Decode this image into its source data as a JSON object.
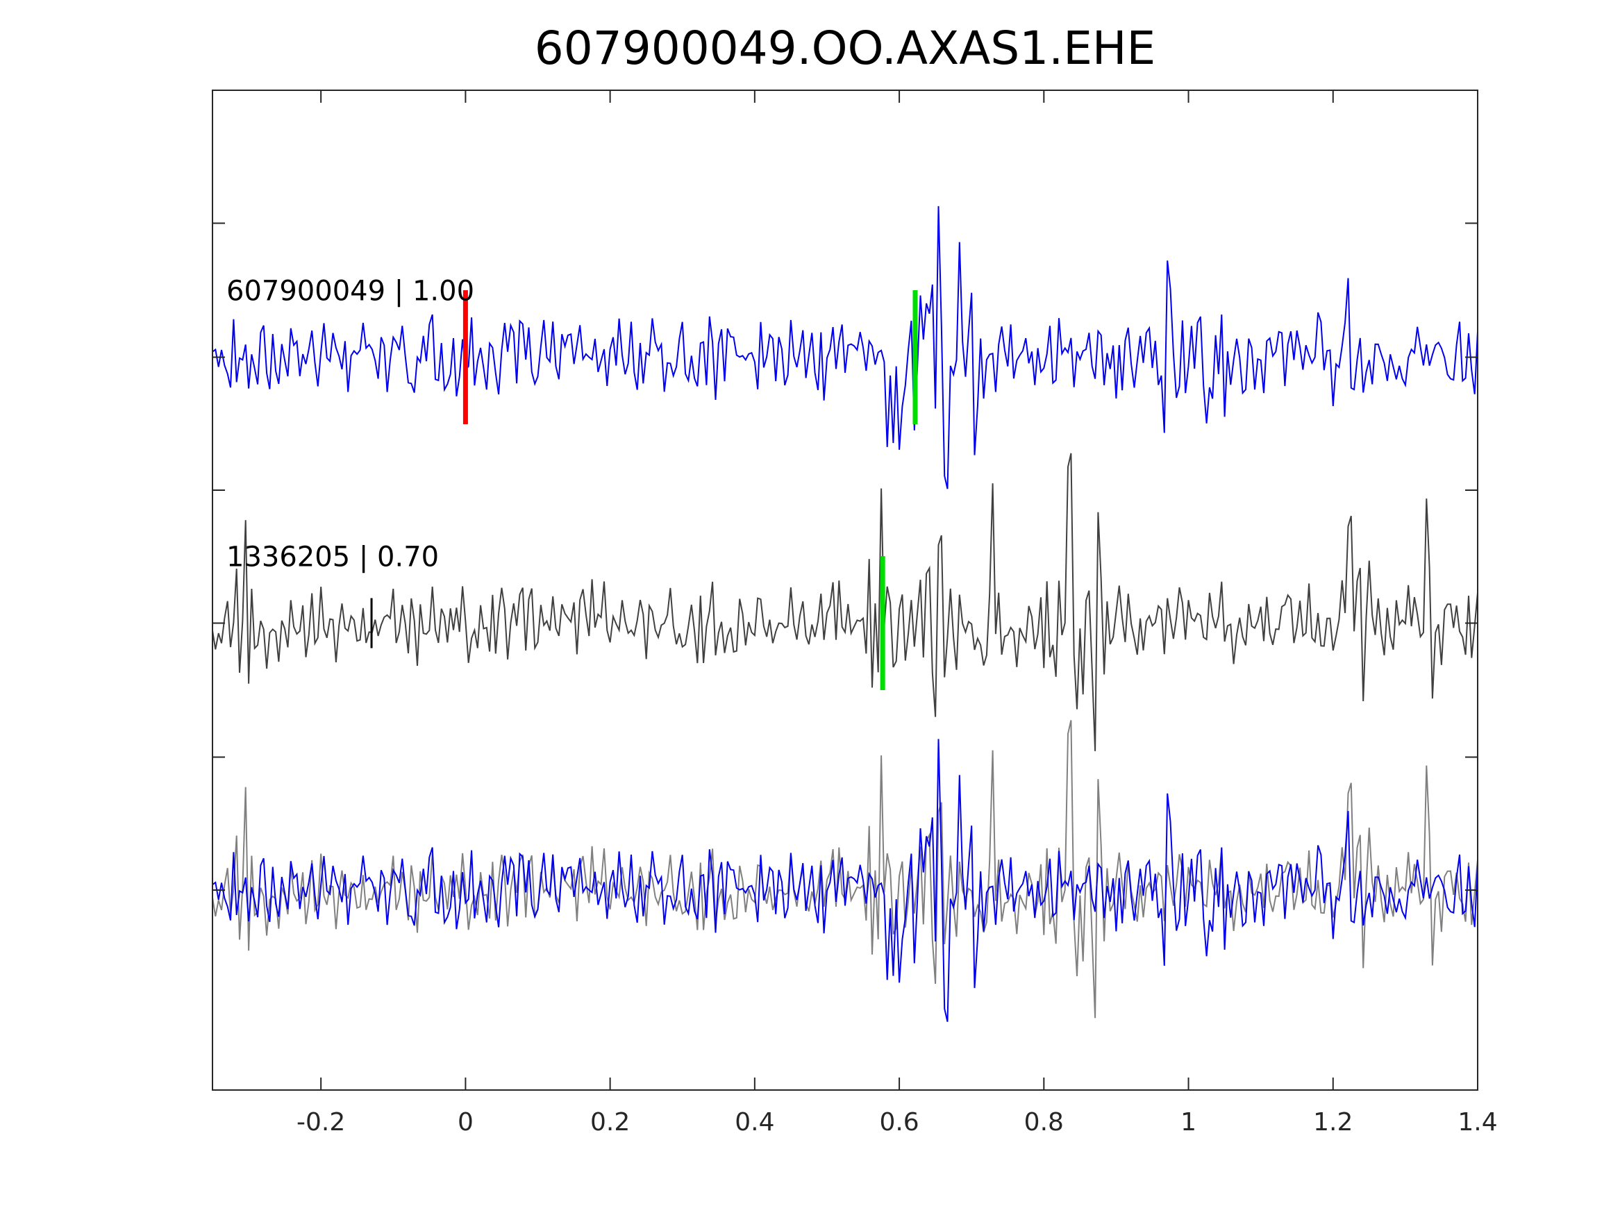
{
  "chart_data": {
    "type": "line",
    "title": "607900049.OO.AXAS1.EHE",
    "xlabel": "",
    "ylabel": "",
    "xlim": [
      -0.35,
      1.4
    ],
    "ylim": [
      0,
      1
    ],
    "grid": false,
    "xticks": [
      -0.2,
      0,
      0.2,
      0.4,
      0.6,
      0.8,
      1,
      1.2,
      1.4
    ],
    "xtick_labels": [
      "-0.2",
      "0",
      "0.2",
      "0.4",
      "0.6",
      "0.8",
      "1",
      "1.2",
      "1.4"
    ],
    "yticks": [
      0.2,
      0.333,
      0.467,
      0.6,
      0.733,
      0.867
    ],
    "colors": {
      "primary_trace": "#0000ee",
      "secondary_trace": "#404040",
      "overlay_secondary": "#808080",
      "pick_p": "#ff0000",
      "pick_s": "#00dd00",
      "axes": "#262626"
    },
    "traces": [
      {
        "label": "607900049 | 1.00",
        "baseline": 0.733,
        "color": "#0000ee",
        "x_start": -0.35,
        "x_end": 1.4,
        "amplitude": 0.04,
        "seed": 17,
        "bursts": [
          {
            "x": 0.6,
            "gain": 2.8
          },
          {
            "x": 0.655,
            "gain": 3.2
          },
          {
            "x": 0.69,
            "gain": 2.6
          },
          {
            "x": 0.975,
            "gain": 2.0
          },
          {
            "x": 1.04,
            "gain": 2.2
          },
          {
            "x": 1.21,
            "gain": 2.6
          }
        ]
      },
      {
        "label": "1336205 | 0.70",
        "baseline": 0.467,
        "color": "#404040",
        "x_start": -0.35,
        "x_end": 1.4,
        "amplitude": 0.04,
        "seed": 53,
        "bursts": [
          {
            "x": -0.31,
            "gain": 2.0
          },
          {
            "x": 0.57,
            "gain": 2.6
          },
          {
            "x": 0.65,
            "gain": 3.2
          },
          {
            "x": 0.73,
            "gain": 2.6
          },
          {
            "x": 0.83,
            "gain": 3.8
          },
          {
            "x": 0.87,
            "gain": 2.6
          },
          {
            "x": 1.23,
            "gain": 3.2
          },
          {
            "x": 1.33,
            "gain": 3.0
          }
        ]
      }
    ],
    "overlay": {
      "baseline": 0.2,
      "series_colors": [
        "#808080",
        "#0000ee"
      ]
    },
    "picks": [
      {
        "trace": 0,
        "x": 0.0,
        "color": "#ff0000",
        "half_height": 0.067
      },
      {
        "trace": 0,
        "x": 0.622,
        "color": "#00dd00",
        "half_height": 0.067
      },
      {
        "trace": 1,
        "x": -0.13,
        "color": "#000000",
        "half_height": 0.025
      },
      {
        "trace": 1,
        "x": 0.577,
        "color": "#00dd00",
        "half_height": 0.067
      }
    ]
  }
}
